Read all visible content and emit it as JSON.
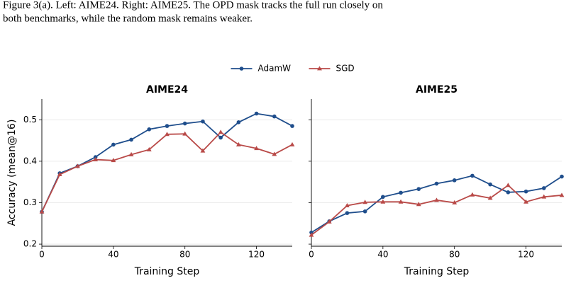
{
  "caption": [
    "Figure 3(a). Left: AIME24. Right: AIME25. The OPD mask tracks the full run closely on",
    "both benchmarks, while the random mask remains weaker."
  ],
  "chart_data": [
    {
      "type": "line",
      "title": "AIME24",
      "xlabel": "Training Step",
      "ylabel": "Accuracy (mean@16)",
      "x": [
        0,
        10,
        20,
        30,
        40,
        50,
        60,
        70,
        80,
        90,
        100,
        110,
        120,
        130,
        140
      ],
      "series": [
        {
          "name": "AdamW",
          "color": "#1f4e8c",
          "marker": "circle",
          "values": [
            0.278,
            0.371,
            0.388,
            0.41,
            0.44,
            0.452,
            0.477,
            0.485,
            0.491,
            0.496,
            0.457,
            0.494,
            0.515,
            0.508,
            0.485
          ]
        },
        {
          "name": "SGD",
          "color": "#b94a48",
          "marker": "triangle",
          "values": [
            0.278,
            0.368,
            0.388,
            0.404,
            0.402,
            0.416,
            0.428,
            0.465,
            0.466,
            0.425,
            0.47,
            0.44,
            0.431,
            0.417,
            0.44
          ]
        }
      ],
      "xlim": [
        0,
        140
      ],
      "xticks": [
        0,
        40,
        80,
        120
      ],
      "ylim": [
        0.195,
        0.55
      ],
      "yticks": [
        0.2,
        0.3,
        0.4,
        0.5
      ],
      "grid": true,
      "show_ytick_labels": true,
      "legend": "top-center"
    },
    {
      "type": "line",
      "title": "AIME25",
      "xlabel": "Training Step",
      "x": [
        0,
        10,
        20,
        30,
        40,
        50,
        60,
        70,
        80,
        90,
        100,
        110,
        120,
        130,
        140
      ],
      "series": [
        {
          "name": "AdamW",
          "color": "#1f4e8c",
          "marker": "circle",
          "values": [
            0.228,
            0.255,
            0.275,
            0.279,
            0.314,
            0.324,
            0.333,
            0.346,
            0.354,
            0.365,
            0.344,
            0.325,
            0.327,
            0.335,
            0.363
          ]
        },
        {
          "name": "SGD",
          "color": "#b94a48",
          "marker": "triangle",
          "values": [
            0.222,
            0.254,
            0.293,
            0.301,
            0.302,
            0.302,
            0.296,
            0.306,
            0.3,
            0.319,
            0.311,
            0.342,
            0.302,
            0.314,
            0.318
          ]
        }
      ],
      "xlim": [
        0,
        140
      ],
      "xticks": [
        0,
        40,
        80,
        120
      ],
      "ylim": [
        0.195,
        0.55
      ],
      "yticks": [
        0.2,
        0.3,
        0.4,
        0.5
      ],
      "grid": true,
      "show_ytick_labels": false
    }
  ]
}
